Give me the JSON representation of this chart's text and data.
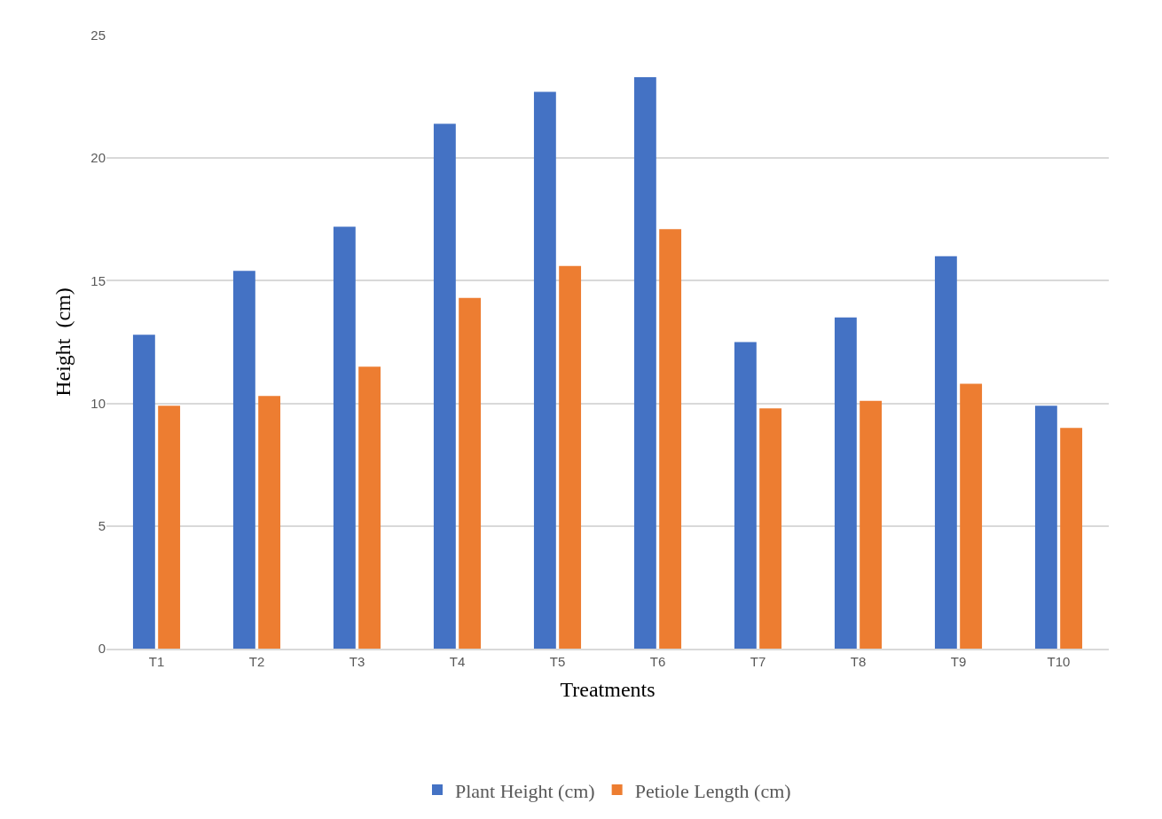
{
  "chart_data": {
    "type": "bar",
    "xlabel": "Treatments",
    "ylabel": "Height  (cm)",
    "categories": [
      "T1",
      "T2",
      "T3",
      "T4",
      "T5",
      "T6",
      "T7",
      "T8",
      "T9",
      "T10"
    ],
    "series": [
      {
        "name": "Plant Height (cm)",
        "color": "#4472c4",
        "values": [
          12.8,
          15.4,
          17.2,
          21.4,
          22.7,
          23.3,
          12.5,
          13.5,
          16.0,
          9.9
        ]
      },
      {
        "name": "Petiole Length (cm)",
        "color": "#ed7d31",
        "values": [
          9.9,
          10.3,
          11.5,
          14.3,
          15.6,
          17.1,
          9.8,
          10.1,
          10.8,
          9.0
        ]
      }
    ],
    "ylim": [
      0,
      25
    ],
    "yticks": [
      0,
      5,
      10,
      15,
      20,
      25
    ],
    "grid": "y",
    "legend": "bottom"
  }
}
